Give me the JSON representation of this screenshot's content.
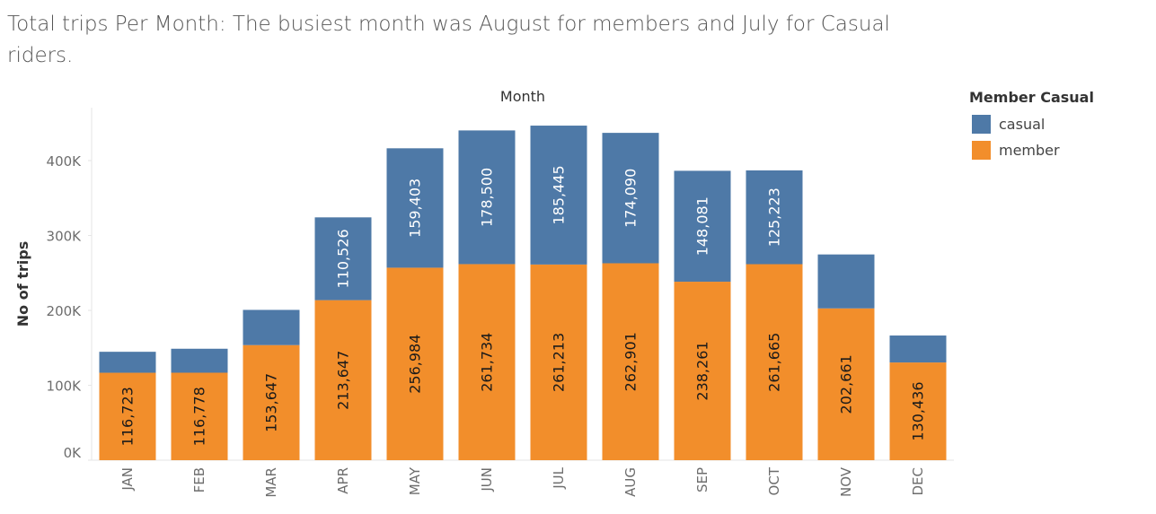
{
  "title": "Total trips Per Month:  The busiest month was August for members and July for Casual riders.",
  "legend": {
    "title": "Member Casual",
    "items": [
      {
        "label": "casual",
        "color": "#4e79a7"
      },
      {
        "label": "member",
        "color": "#f28e2b"
      }
    ]
  },
  "chart_data": {
    "type": "bar",
    "stacked": true,
    "title": "Total trips Per Month:  The busiest month was August for members and July for Casual riders.",
    "xlabel": "Month",
    "ylabel": "No of trips",
    "categories": [
      "JAN",
      "FEB",
      "MAR",
      "APR",
      "MAY",
      "JUN",
      "JUL",
      "AUG",
      "SEP",
      "OCT",
      "NOV",
      "DEC"
    ],
    "ylim": [
      0,
      480000
    ],
    "yticks": [
      0,
      100000,
      200000,
      300000,
      400000
    ],
    "ytick_labels": [
      "0K",
      "100K",
      "200K",
      "300K",
      "400K"
    ],
    "grid": false,
    "legend_position": "top-right",
    "series": [
      {
        "name": "member",
        "color": "#f28e2b",
        "values": [
          116723,
          116778,
          153647,
          213647,
          256984,
          261734,
          261213,
          262901,
          238261,
          261665,
          202661,
          130436
        ],
        "labels": [
          "116,723",
          "116,778",
          "153,647",
          "213,647",
          "256,984",
          "261,734",
          "261,213",
          "262,901",
          "238,261",
          "261,665",
          "202,661",
          "130,436"
        ]
      },
      {
        "name": "casual",
        "color": "#4e79a7",
        "values": [
          28000,
          32000,
          47000,
          110526,
          159403,
          178500,
          185445,
          174090,
          148081,
          125223,
          72000,
          36000
        ],
        "labels": [
          "",
          "",
          "",
          "110,526",
          "159,403",
          "178,500",
          "185,445",
          "174,090",
          "148,081",
          "125,223",
          "",
          ""
        ]
      }
    ]
  }
}
